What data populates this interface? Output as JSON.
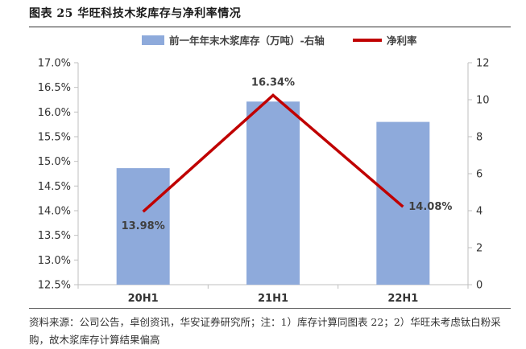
{
  "figure": {
    "title": "图表 25 华旺科技木浆库存与净利率情况",
    "source": "资料来源：公司公告，卓创资讯，华安证券研究所；注：1）库存计算同图表 22；2）华旺未考虑钛白粉采购，故木浆库存计算结果偏高"
  },
  "legend": {
    "bar_label": "前一年年末木浆库存（万吨）-右轴",
    "line_label": "净利率"
  },
  "colors": {
    "bar": "#8eaadb",
    "line": "#c00000",
    "axis": "#bfbfbf"
  },
  "chart_data": {
    "type": "bar",
    "categories": [
      "20H1",
      "21H1",
      "22H1"
    ],
    "series": [
      {
        "name": "前一年年末木浆库存（万吨）-右轴",
        "type": "bar",
        "axis": "right",
        "values": [
          6.3,
          9.9,
          8.8
        ]
      },
      {
        "name": "净利率",
        "type": "line",
        "axis": "left",
        "values": [
          13.98,
          16.34,
          14.08
        ],
        "labels": [
          "13.98%",
          "16.34%",
          "14.08%"
        ]
      }
    ],
    "left_axis": {
      "min": 12.5,
      "max": 17.0,
      "step": 0.5,
      "ticks": [
        "12.5%",
        "13.0%",
        "13.5%",
        "14.0%",
        "14.5%",
        "15.0%",
        "15.5%",
        "16.0%",
        "16.5%",
        "17.0%"
      ]
    },
    "right_axis": {
      "min": 0,
      "max": 12,
      "step": 2,
      "ticks": [
        "0",
        "2",
        "4",
        "6",
        "8",
        "10",
        "12"
      ]
    },
    "legend_position": "top",
    "grid": false
  }
}
